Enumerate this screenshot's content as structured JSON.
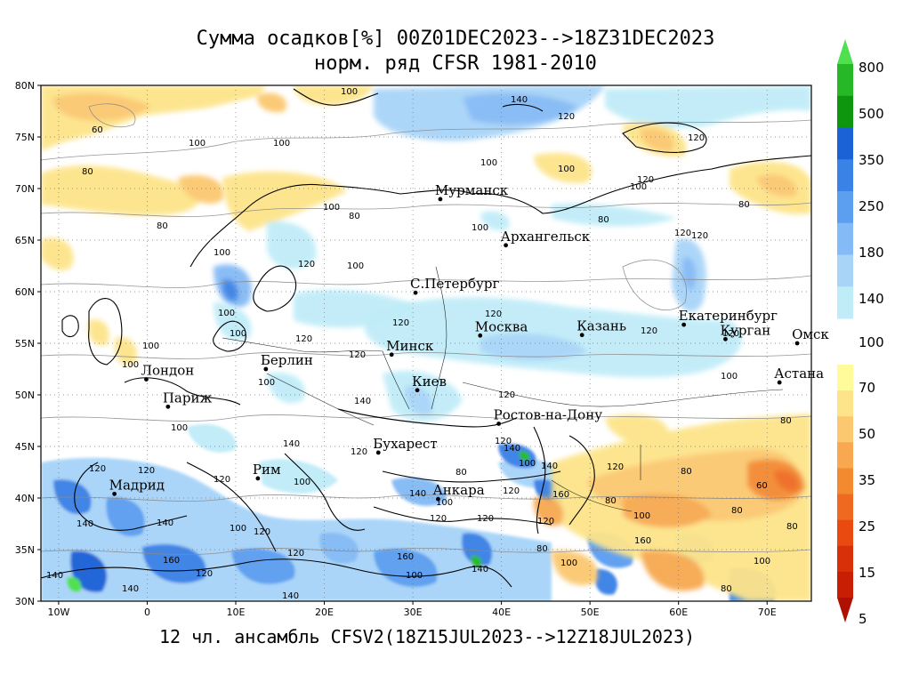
{
  "title_line1": "Сумма осадков[%] 00Z01DEC2023-->18Z31DEC2023",
  "title_line2": "норм. ряд CFSR 1981-2010",
  "footer": "12 чл. ансамбль CFSV2(18Z15JUL2023-->12Z18JUL2023)",
  "map": {
    "lat_labels": [
      "80N",
      "75N",
      "70N",
      "65N",
      "60N",
      "55N",
      "50N",
      "45N",
      "40N",
      "35N",
      "30N"
    ],
    "lon_labels": [
      "10W",
      "0",
      "10E",
      "20E",
      "30E",
      "40E",
      "50E",
      "60E",
      "70E"
    ],
    "cities": [
      {
        "name": "Мурманск",
        "lon": 33.1,
        "lat": 68.97
      },
      {
        "name": "Архангельск",
        "lon": 40.5,
        "lat": 64.5
      },
      {
        "name": "С.Петербург",
        "lon": 30.3,
        "lat": 59.9
      },
      {
        "name": "Москва",
        "lon": 37.6,
        "lat": 55.75
      },
      {
        "name": "Казань",
        "lon": 49.1,
        "lat": 55.8
      },
      {
        "name": "Екатеринбург",
        "lon": 60.6,
        "lat": 56.8
      },
      {
        "name": "Курган",
        "lon": 65.3,
        "lat": 55.4
      },
      {
        "name": "Омск",
        "lon": 73.4,
        "lat": 55.0
      },
      {
        "name": "Астана",
        "lon": 71.4,
        "lat": 51.2
      },
      {
        "name": "Минск",
        "lon": 27.6,
        "lat": 53.9
      },
      {
        "name": "Киев",
        "lon": 30.5,
        "lat": 50.45
      },
      {
        "name": "Берлин",
        "lon": 13.4,
        "lat": 52.5
      },
      {
        "name": "Лондон",
        "lon": -0.1,
        "lat": 51.5
      },
      {
        "name": "Париж",
        "lon": 2.35,
        "lat": 48.85
      },
      {
        "name": "Ростов-на-Дону",
        "lon": 39.7,
        "lat": 47.2
      },
      {
        "name": "Бухарест",
        "lon": 26.1,
        "lat": 44.4
      },
      {
        "name": "Рим",
        "lon": 12.5,
        "lat": 41.9
      },
      {
        "name": "Мадрид",
        "lon": -3.7,
        "lat": 40.4
      },
      {
        "name": "Анкара",
        "lon": 32.85,
        "lat": 39.9
      }
    ]
  },
  "colorbar": {
    "upper": {
      "labels": [
        "800",
        "500",
        "350",
        "250",
        "180",
        "140"
      ],
      "colors": [
        "#4ee04e",
        "#27b827",
        "#0e960e",
        "#1a62d6",
        "#3b82e6",
        "#5c9ef0",
        "#84baf5",
        "#a8d4f8",
        "#c0ecf8"
      ]
    },
    "mid_label": "100",
    "lower": {
      "labels": [
        "70",
        "50",
        "35",
        "25",
        "15",
        "5"
      ],
      "colors": [
        "#fffa9a",
        "#fde48a",
        "#fbc870",
        "#f7a850",
        "#f38a30",
        "#ef6a20",
        "#e84a10",
        "#d83008",
        "#c81e04",
        "#b01000"
      ]
    }
  }
}
